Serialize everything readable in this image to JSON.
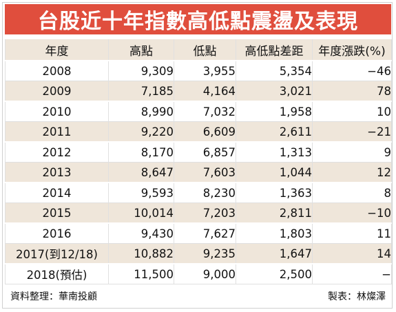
{
  "title": "台股近十年指數高低點震盪及表現",
  "table": {
    "headers": [
      "年度",
      "高點",
      "低點",
      "高低點差距",
      "年度漲跌(%)"
    ],
    "rows": [
      [
        "2008",
        "9,309",
        "3,955",
        "5,354",
        "−46"
      ],
      [
        "2009",
        "7,185",
        "4,164",
        "3,021",
        "78"
      ],
      [
        "2010",
        "8,990",
        "7,032",
        "1,958",
        "10"
      ],
      [
        "2011",
        "9,220",
        "6,609",
        "2,611",
        "−21"
      ],
      [
        "2012",
        "8,170",
        "6,857",
        "1,313",
        "9"
      ],
      [
        "2013",
        "8,647",
        "7,603",
        "1,044",
        "12"
      ],
      [
        "2014",
        "9,593",
        "8,230",
        "1,363",
        "8"
      ],
      [
        "2015",
        "10,014",
        "7,203",
        "2,811",
        "−10"
      ],
      [
        "2016",
        "9,430",
        "7,627",
        "1,803",
        "11"
      ],
      [
        "2017(到12/18)",
        "10,882",
        "9,235",
        "1,647",
        "14"
      ],
      [
        "2018(預估)",
        "11,500",
        "9,000",
        "2,500",
        "−"
      ]
    ]
  },
  "footer": {
    "source": "資料整理：華南投顧",
    "credit": "製表：林燦澤"
  },
  "colors": {
    "title_bg": "#e04e3d",
    "band": "#efe6da"
  }
}
